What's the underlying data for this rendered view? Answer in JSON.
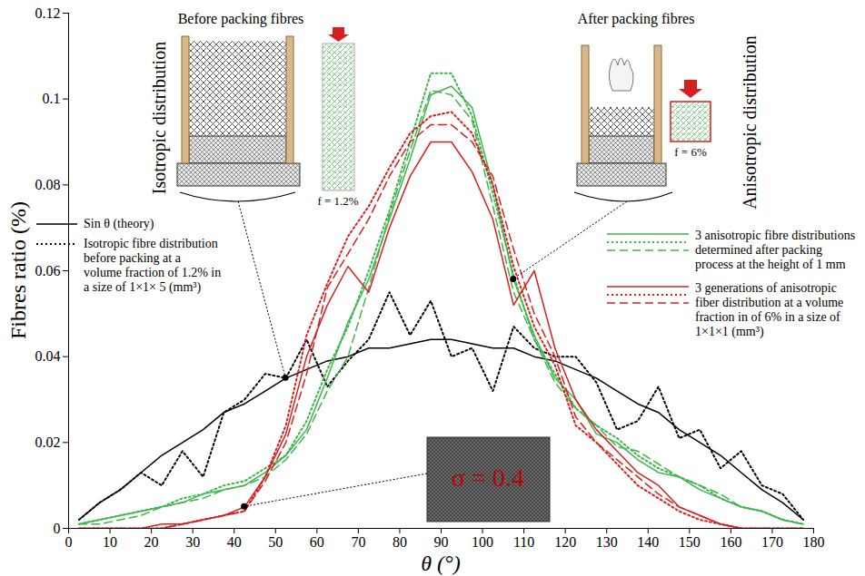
{
  "chart_data": {
    "type": "line",
    "xlabel": "θ (°)",
    "ylabel": "Fibres ratio (%)",
    "xlim": [
      0,
      180
    ],
    "xticks": [
      0,
      10,
      20,
      30,
      40,
      50,
      60,
      70,
      80,
      90,
      100,
      110,
      120,
      130,
      140,
      150,
      160,
      170,
      180
    ],
    "ylim": [
      0,
      0.12
    ],
    "yticks": [
      0,
      0.02,
      0.04,
      0.06,
      0.08,
      0.1,
      0.12
    ],
    "grid": false,
    "x": [
      2.5,
      7.5,
      12.5,
      17.5,
      22.5,
      27.5,
      32.5,
      37.5,
      42.5,
      47.5,
      52.5,
      57.5,
      62.5,
      67.5,
      72.5,
      77.5,
      82.5,
      87.5,
      92.5,
      97.5,
      102.5,
      107.5,
      112.5,
      117.5,
      122.5,
      127.5,
      132.5,
      137.5,
      142.5,
      147.5,
      152.5,
      157.5,
      162.5,
      167.5,
      172.5,
      177.5
    ],
    "series": [
      {
        "name": "Sin θ (theory)",
        "color": "#000000",
        "line_style": "solid",
        "values": [
          0.002,
          0.006,
          0.009,
          0.013,
          0.017,
          0.02,
          0.023,
          0.027,
          0.029,
          0.032,
          0.035,
          0.037,
          0.039,
          0.04,
          0.042,
          0.042,
          0.043,
          0.044,
          0.044,
          0.043,
          0.042,
          0.042,
          0.04,
          0.039,
          0.037,
          0.035,
          0.032,
          0.029,
          0.027,
          0.023,
          0.02,
          0.017,
          0.013,
          0.009,
          0.006,
          0.002
        ]
      },
      {
        "name": "Isotropic fibre distribution before packing at a volume fraction of 1.2% in a size of 1×1× 5 (mm³)",
        "color": "#000000",
        "line_style": "dotted",
        "values": [
          0.002,
          0.006,
          0.009,
          0.013,
          0.01,
          0.018,
          0.012,
          0.027,
          0.03,
          0.036,
          0.035,
          0.044,
          0.033,
          0.039,
          0.044,
          0.055,
          0.045,
          0.053,
          0.04,
          0.042,
          0.032,
          0.047,
          0.042,
          0.04,
          0.04,
          0.034,
          0.023,
          0.025,
          0.033,
          0.021,
          0.023,
          0.014,
          0.018,
          0.01,
          0.008,
          0.002
        ]
      },
      {
        "name": "3 anisotropic fibre distributions determined after packing process at the height of 1 mm",
        "color": "#3db54a",
        "line_style": "solid",
        "values": [
          0.001,
          0.002,
          0.003,
          0.004,
          0.005,
          0.006,
          0.008,
          0.009,
          0.01,
          0.013,
          0.017,
          0.023,
          0.035,
          0.048,
          0.058,
          0.072,
          0.086,
          0.101,
          0.103,
          0.098,
          0.08,
          0.058,
          0.045,
          0.035,
          0.03,
          0.022,
          0.02,
          0.016,
          0.013,
          0.012,
          0.009,
          0.007,
          0.005,
          0.004,
          0.002,
          0.001
        ]
      },
      {
        "name": "3 anisotropic fibre distributions determined after packing process at the height of 1 mm",
        "color": "#3db54a",
        "line_style": "dotted",
        "values": [
          0.001,
          0.002,
          0.003,
          0.004,
          0.005,
          0.007,
          0.008,
          0.01,
          0.011,
          0.014,
          0.017,
          0.025,
          0.037,
          0.047,
          0.06,
          0.074,
          0.09,
          0.106,
          0.106,
          0.096,
          0.078,
          0.059,
          0.044,
          0.036,
          0.028,
          0.024,
          0.021,
          0.017,
          0.014,
          0.012,
          0.01,
          0.007,
          0.005,
          0.004,
          0.002,
          0.001
        ]
      },
      {
        "name": "3 anisotropic fibre distributions determined after packing process at the height of 1 mm",
        "color": "#3db54a",
        "line_style": "dashed",
        "values": [
          0.001,
          0.001,
          0.002,
          0.003,
          0.005,
          0.006,
          0.007,
          0.009,
          0.01,
          0.012,
          0.016,
          0.022,
          0.032,
          0.04,
          0.056,
          0.073,
          0.088,
          0.102,
          0.101,
          0.095,
          0.075,
          0.055,
          0.044,
          0.034,
          0.028,
          0.024,
          0.019,
          0.018,
          0.015,
          0.012,
          0.01,
          0.008,
          0.005,
          0.004,
          0.002,
          0.001
        ]
      },
      {
        "name": "3 generations of anisotropic fiber distribution at a volume fraction in of 6% in a size of 1×1×1 (mm³)",
        "color": "#d62020",
        "line_style": "solid",
        "values": [
          0,
          0,
          0,
          0,
          0.001,
          0.001,
          0.002,
          0.003,
          0.005,
          0.012,
          0.022,
          0.04,
          0.052,
          0.061,
          0.055,
          0.07,
          0.082,
          0.09,
          0.09,
          0.083,
          0.072,
          0.052,
          0.06,
          0.042,
          0.03,
          0.023,
          0.018,
          0.013,
          0.01,
          0.005,
          0.003,
          0.001,
          0,
          0,
          0,
          0
        ]
      },
      {
        "name": "3 generations of anisotropic fiber distribution at a volume fraction in of 6% in a size of 1×1×1 (mm³)",
        "color": "#d62020",
        "line_style": "dotted",
        "values": [
          0,
          0,
          0,
          0,
          0,
          0.001,
          0.002,
          0.003,
          0.004,
          0.012,
          0.024,
          0.045,
          0.057,
          0.068,
          0.075,
          0.084,
          0.092,
          0.096,
          0.097,
          0.092,
          0.08,
          0.061,
          0.047,
          0.038,
          0.024,
          0.02,
          0.015,
          0.01,
          0.007,
          0.004,
          0.002,
          0.001,
          0,
          0,
          0,
          0
        ]
      },
      {
        "name": "3 generations of anisotropic fiber distribution at a volume fraction in of 6% in a size of 1×1×1 (mm³)",
        "color": "#d62020",
        "line_style": "dashed",
        "values": [
          0,
          0,
          0,
          0,
          0,
          0.001,
          0.002,
          0.003,
          0.004,
          0.011,
          0.02,
          0.036,
          0.056,
          0.064,
          0.072,
          0.082,
          0.09,
          0.094,
          0.094,
          0.09,
          0.082,
          0.065,
          0.05,
          0.04,
          0.026,
          0.02,
          0.016,
          0.012,
          0.008,
          0.005,
          0.003,
          0.001,
          0,
          0,
          0,
          0
        ]
      }
    ],
    "annotations": {
      "before_title": "Before packing fibres",
      "after_title": "After packing fibres",
      "isotropic": "Isotropic distribution",
      "anisotropic": "Anisotropic distribution",
      "f_before": "f = 1.2%",
      "f_after": "f = 6%",
      "sigma": "σ = 0.4"
    }
  }
}
